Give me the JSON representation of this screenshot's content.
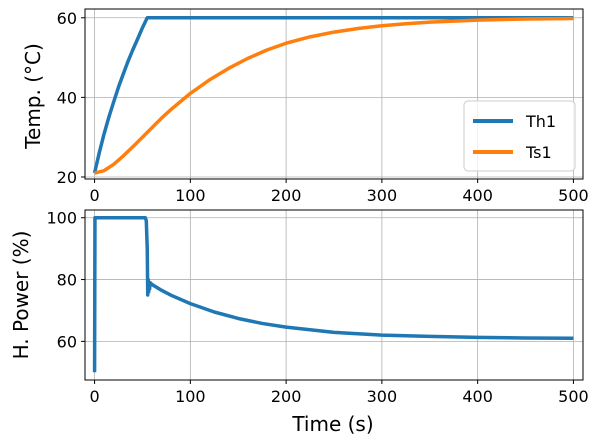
{
  "chart_data": [
    {
      "type": "line",
      "xlabel": "",
      "ylabel": "Temp. (°C)",
      "xlim": [
        -10,
        510
      ],
      "ylim": [
        19.5,
        62.2
      ],
      "xticks": [
        0,
        100,
        200,
        300,
        400,
        500
      ],
      "yticks": [
        20,
        40,
        60
      ],
      "grid": true,
      "legend": "lower-right",
      "series": [
        {
          "name": "Th1",
          "color": "#1f77b4",
          "x": [
            0,
            5,
            10,
            15,
            20,
            25,
            30,
            35,
            40,
            45,
            50,
            55,
            60,
            100,
            200,
            300,
            400,
            500
          ],
          "y": [
            21,
            26.2,
            30.9,
            35.1,
            38.9,
            42.6,
            45.9,
            49.1,
            52.0,
            54.7,
            57.5,
            60,
            60,
            60,
            60,
            60,
            60,
            60
          ]
        },
        {
          "name": "Ts1",
          "color": "#ff7f0e",
          "x": [
            0,
            10,
            20,
            30,
            40,
            50,
            60,
            70,
            80,
            90,
            100,
            120,
            140,
            160,
            180,
            200,
            225,
            250,
            275,
            300,
            325,
            350,
            400,
            450,
            500
          ],
          "y": [
            21,
            21.6,
            23.2,
            25.3,
            27.6,
            30.0,
            32.4,
            34.8,
            37.0,
            39.0,
            41.0,
            44.4,
            47.3,
            49.8,
            51.9,
            53.6,
            55.2,
            56.4,
            57.3,
            58.0,
            58.5,
            58.9,
            59.4,
            59.7,
            59.8
          ]
        }
      ]
    },
    {
      "type": "line",
      "xlabel": "Time (s)",
      "ylabel": "H. Power (%)",
      "xlim": [
        -10,
        510
      ],
      "ylim": [
        47.5,
        102.5
      ],
      "xticks": [
        0,
        100,
        200,
        300,
        400,
        500
      ],
      "yticks": [
        60,
        80,
        100
      ],
      "grid": true,
      "series": [
        {
          "name": "",
          "color": "#1f77b4",
          "x": [
            0,
            0.4,
            1,
            50,
            53,
            54,
            55,
            55.5,
            56,
            56.5,
            57,
            57.5,
            58,
            60,
            70,
            80,
            100,
            125,
            150,
            175,
            200,
            250,
            300,
            350,
            400,
            450,
            500
          ],
          "y": [
            50,
            100,
            100,
            100,
            100,
            99,
            90,
            75,
            80,
            76,
            79,
            77,
            79,
            78.4,
            76.5,
            74.9,
            72.2,
            69.5,
            67.4,
            65.8,
            64.6,
            62.9,
            62.0,
            61.6,
            61.3,
            61.1,
            61.0
          ]
        }
      ]
    }
  ]
}
